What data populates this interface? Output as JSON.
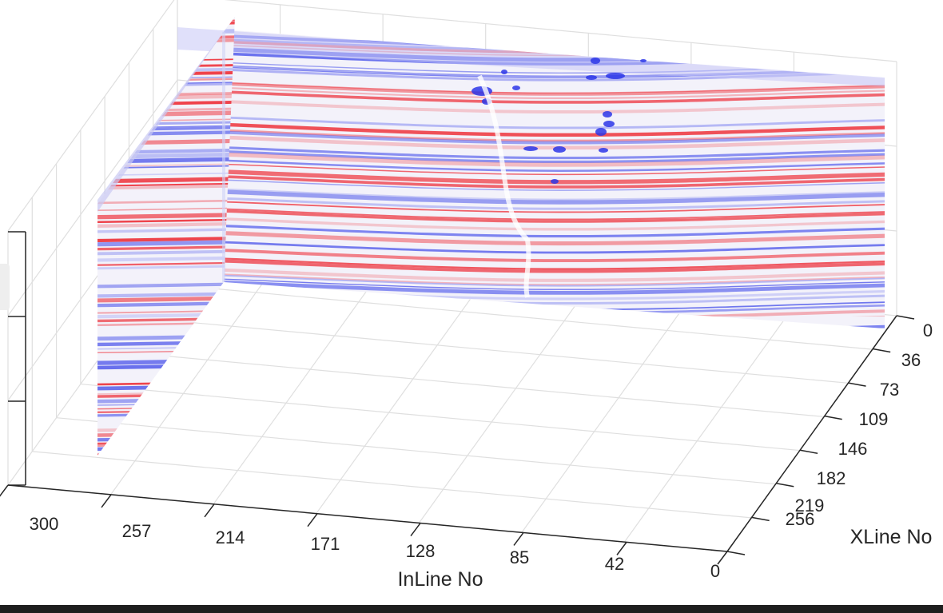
{
  "chart_data": {
    "type": "heatmap",
    "subtype": "3d-seismic-fence",
    "colormap": "red-white-blue (diverging)",
    "colors": {
      "positive": "#ee2a33",
      "negative": "#2b36e8",
      "zero": "#ffffff"
    },
    "grid": true,
    "xlabel": "InLine No",
    "ylabel": "XLine No",
    "zlabel": "",
    "x_ticks": [
      "300",
      "257",
      "214",
      "171",
      "128",
      "85",
      "42",
      "0"
    ],
    "x_tick_values": [
      300,
      257,
      214,
      171,
      128,
      85,
      42,
      0
    ],
    "y_ticks": [
      "0",
      "36",
      "73",
      "109",
      "146",
      "182",
      "219",
      "256"
    ],
    "y_tick_values": [
      0,
      36,
      73,
      109,
      146,
      182,
      219,
      256
    ],
    "xlim": [
      0,
      300
    ],
    "ylim": [
      0,
      256
    ],
    "slices": [
      {
        "orientation": "xline-section",
        "xline": 0,
        "inline_range": [
          0,
          300
        ]
      },
      {
        "orientation": "inline-section",
        "inline": 300,
        "xline_range": [
          0,
          256
        ]
      }
    ]
  }
}
